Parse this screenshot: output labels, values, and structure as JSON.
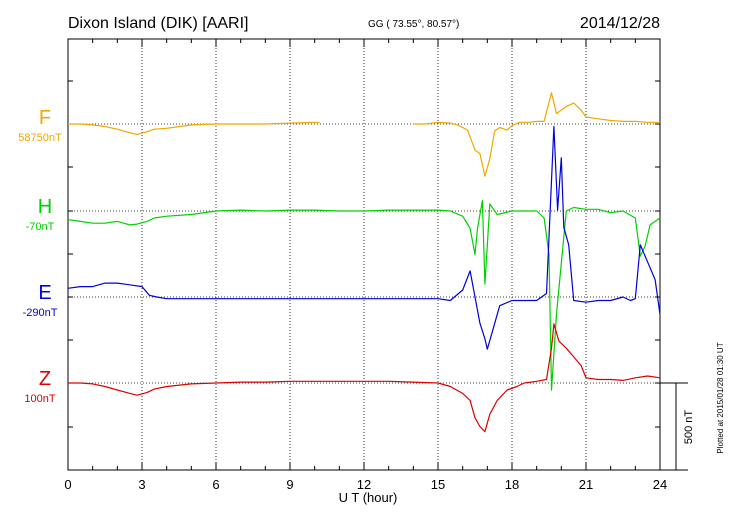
{
  "header": {
    "station": "Dixon Island (DIK)  [AARI]",
    "coords": "GG ( 73.55°,  80.57°)",
    "date": "2014/12/28"
  },
  "plotted_note": "Plotted at 2015/01/28 01:30 UT",
  "scale_label": "500 nT",
  "chart_data": {
    "type": "line",
    "xlabel": "U T (hour)",
    "xlim": [
      0,
      24
    ],
    "xticks": [
      0,
      3,
      6,
      9,
      12,
      15,
      18,
      21,
      24
    ],
    "grid": true,
    "grid_style": "dotted",
    "series": [
      {
        "name": "F",
        "baseline_label": "58750nT",
        "color": "#f0a800",
        "points": [
          [
            0.0,
            0
          ],
          [
            0.5,
            0
          ],
          [
            1.0,
            -5
          ],
          [
            1.5,
            -15
          ],
          [
            2.0,
            -30
          ],
          [
            2.5,
            -50
          ],
          [
            2.8,
            -60
          ],
          [
            3.2,
            -45
          ],
          [
            3.5,
            -30
          ],
          [
            4.0,
            -25
          ],
          [
            4.5,
            -15
          ],
          [
            5.0,
            -5
          ],
          [
            6.0,
            0
          ],
          [
            7.0,
            0
          ],
          [
            8.0,
            0
          ],
          [
            9.0,
            5
          ],
          [
            10.0,
            10
          ],
          [
            10.2,
            10
          ],
          [
            null,
            null
          ],
          [
            14.0,
            0
          ],
          [
            14.5,
            0
          ],
          [
            15.0,
            10
          ],
          [
            15.5,
            5
          ],
          [
            15.8,
            -5
          ],
          [
            16.2,
            -35
          ],
          [
            16.5,
            -150
          ],
          [
            16.7,
            -170
          ],
          [
            16.9,
            -300
          ],
          [
            17.1,
            -200
          ],
          [
            17.3,
            -40
          ],
          [
            17.5,
            -20
          ],
          [
            17.8,
            -35
          ],
          [
            18.0,
            -10
          ],
          [
            18.3,
            10
          ],
          [
            18.7,
            10
          ],
          [
            19.0,
            15
          ],
          [
            19.3,
            15
          ],
          [
            19.6,
            180
          ],
          [
            19.8,
            60
          ],
          [
            20.2,
            100
          ],
          [
            20.5,
            120
          ],
          [
            20.8,
            80
          ],
          [
            21.0,
            40
          ],
          [
            21.5,
            30
          ],
          [
            22.0,
            20
          ],
          [
            22.5,
            15
          ],
          [
            23.0,
            15
          ],
          [
            23.5,
            10
          ],
          [
            24.0,
            10
          ]
        ]
      },
      {
        "name": "H",
        "baseline_label": "-70nT",
        "color": "#00d000",
        "points": [
          [
            0.0,
            -50
          ],
          [
            0.5,
            -60
          ],
          [
            1.0,
            -70
          ],
          [
            1.5,
            -70
          ],
          [
            2.0,
            -60
          ],
          [
            2.5,
            -80
          ],
          [
            2.8,
            -75
          ],
          [
            3.2,
            -60
          ],
          [
            3.5,
            -40
          ],
          [
            4.0,
            -30
          ],
          [
            5.0,
            -20
          ],
          [
            6.0,
            0
          ],
          [
            7.0,
            5
          ],
          [
            8.0,
            0
          ],
          [
            9.0,
            5
          ],
          [
            10.0,
            5
          ],
          [
            11.0,
            0
          ],
          [
            12.0,
            0
          ],
          [
            13.0,
            5
          ],
          [
            14.0,
            5
          ],
          [
            15.0,
            5
          ],
          [
            15.5,
            0
          ],
          [
            16.0,
            -30
          ],
          [
            16.3,
            -100
          ],
          [
            16.5,
            -250
          ],
          [
            16.6,
            -100
          ],
          [
            16.8,
            60
          ],
          [
            16.9,
            -420
          ],
          [
            17.0,
            -200
          ],
          [
            17.1,
            40
          ],
          [
            17.4,
            -20
          ],
          [
            18.0,
            0
          ],
          [
            18.5,
            0
          ],
          [
            19.0,
            0
          ],
          [
            19.3,
            -40
          ],
          [
            19.5,
            -250
          ],
          [
            19.6,
            -1030
          ],
          [
            19.8,
            -600
          ],
          [
            20.0,
            -300
          ],
          [
            20.2,
            0
          ],
          [
            20.5,
            20
          ],
          [
            21.0,
            10
          ],
          [
            21.5,
            10
          ],
          [
            22.0,
            -10
          ],
          [
            22.5,
            0
          ],
          [
            23.0,
            -40
          ],
          [
            23.2,
            -260
          ],
          [
            23.4,
            -200
          ],
          [
            23.6,
            -80
          ],
          [
            24.0,
            -40
          ]
        ]
      },
      {
        "name": "E",
        "baseline_label": "-290nT",
        "color": "#0000dd",
        "points": [
          [
            0.0,
            50
          ],
          [
            0.5,
            60
          ],
          [
            1.0,
            60
          ],
          [
            1.5,
            80
          ],
          [
            2.0,
            80
          ],
          [
            2.5,
            70
          ],
          [
            3.0,
            60
          ],
          [
            3.3,
            10
          ],
          [
            3.6,
            0
          ],
          [
            4.0,
            -10
          ],
          [
            5.0,
            -10
          ],
          [
            6.0,
            -10
          ],
          [
            7.0,
            -10
          ],
          [
            8.0,
            -10
          ],
          [
            9.0,
            -10
          ],
          [
            10.0,
            -10
          ],
          [
            11.0,
            -10
          ],
          [
            12.0,
            -10
          ],
          [
            13.0,
            -10
          ],
          [
            14.0,
            -10
          ],
          [
            15.0,
            -10
          ],
          [
            15.5,
            -20
          ],
          [
            16.0,
            40
          ],
          [
            16.3,
            150
          ],
          [
            16.5,
            0
          ],
          [
            16.7,
            -150
          ],
          [
            16.9,
            -240
          ],
          [
            17.0,
            -300
          ],
          [
            17.2,
            -200
          ],
          [
            17.5,
            -50
          ],
          [
            18.0,
            -20
          ],
          [
            18.5,
            -20
          ],
          [
            19.0,
            -20
          ],
          [
            19.4,
            20
          ],
          [
            19.7,
            980
          ],
          [
            19.85,
            500
          ],
          [
            20.0,
            800
          ],
          [
            20.1,
            400
          ],
          [
            20.3,
            300
          ],
          [
            20.5,
            -20
          ],
          [
            21.0,
            -30
          ],
          [
            21.5,
            -20
          ],
          [
            22.0,
            -20
          ],
          [
            22.5,
            0
          ],
          [
            22.8,
            -20
          ],
          [
            23.0,
            -10
          ],
          [
            23.2,
            300
          ],
          [
            23.5,
            200
          ],
          [
            23.8,
            100
          ],
          [
            24.0,
            -100
          ]
        ]
      },
      {
        "name": "Z",
        "baseline_label": "100nT",
        "color": "#dd0000",
        "points": [
          [
            0.0,
            0
          ],
          [
            0.5,
            0
          ],
          [
            1.0,
            -5
          ],
          [
            1.5,
            -20
          ],
          [
            2.0,
            -40
          ],
          [
            2.5,
            -60
          ],
          [
            2.8,
            -70
          ],
          [
            3.2,
            -55
          ],
          [
            3.5,
            -35
          ],
          [
            4.0,
            -20
          ],
          [
            5.0,
            -5
          ],
          [
            6.0,
            0
          ],
          [
            7.0,
            5
          ],
          [
            8.0,
            5
          ],
          [
            9.0,
            10
          ],
          [
            10.0,
            10
          ],
          [
            11.0,
            10
          ],
          [
            12.0,
            10
          ],
          [
            13.0,
            10
          ],
          [
            14.0,
            5
          ],
          [
            15.0,
            0
          ],
          [
            15.5,
            -20
          ],
          [
            16.0,
            -60
          ],
          [
            16.3,
            -100
          ],
          [
            16.5,
            -200
          ],
          [
            16.7,
            -250
          ],
          [
            16.9,
            -280
          ],
          [
            17.1,
            -180
          ],
          [
            17.4,
            -100
          ],
          [
            17.8,
            -40
          ],
          [
            18.2,
            -20
          ],
          [
            18.5,
            0
          ],
          [
            19.0,
            10
          ],
          [
            19.4,
            20
          ],
          [
            19.6,
            200
          ],
          [
            19.7,
            340
          ],
          [
            19.9,
            240
          ],
          [
            20.2,
            200
          ],
          [
            20.5,
            150
          ],
          [
            20.8,
            100
          ],
          [
            21.0,
            30
          ],
          [
            21.5,
            20
          ],
          [
            22.0,
            20
          ],
          [
            22.5,
            15
          ],
          [
            23.0,
            30
          ],
          [
            23.5,
            40
          ],
          [
            24.0,
            30
          ]
        ]
      }
    ]
  }
}
